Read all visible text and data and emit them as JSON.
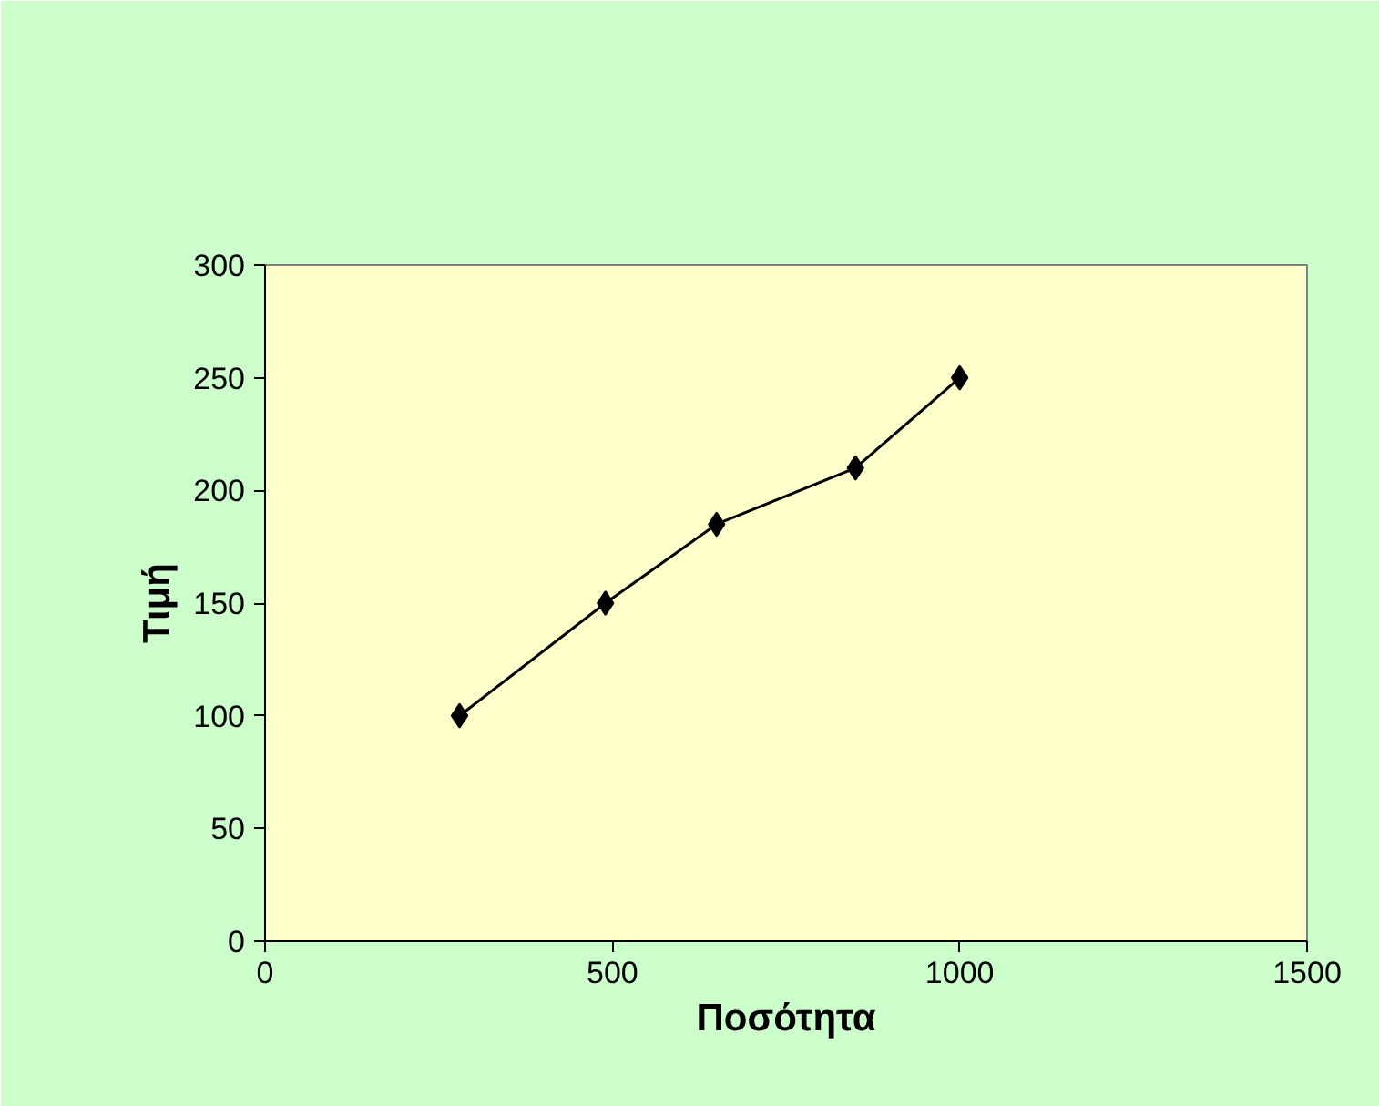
{
  "chart_data": {
    "type": "line",
    "xlabel": "Ποσότητα",
    "ylabel": "Τιμή",
    "x": [
      280,
      490,
      650,
      850,
      1000
    ],
    "series": [
      {
        "color": "#000000",
        "values": [
          100,
          150,
          185,
          210,
          250
        ]
      }
    ],
    "xlim": [
      0,
      1500
    ],
    "xticks": [
      0,
      500,
      1000,
      1500
    ],
    "ylim": [
      0,
      300
    ],
    "yticks": [
      0,
      50,
      100,
      150,
      200,
      250,
      300
    ],
    "grid": false,
    "marker": "diamond",
    "line_style": "solid"
  }
}
